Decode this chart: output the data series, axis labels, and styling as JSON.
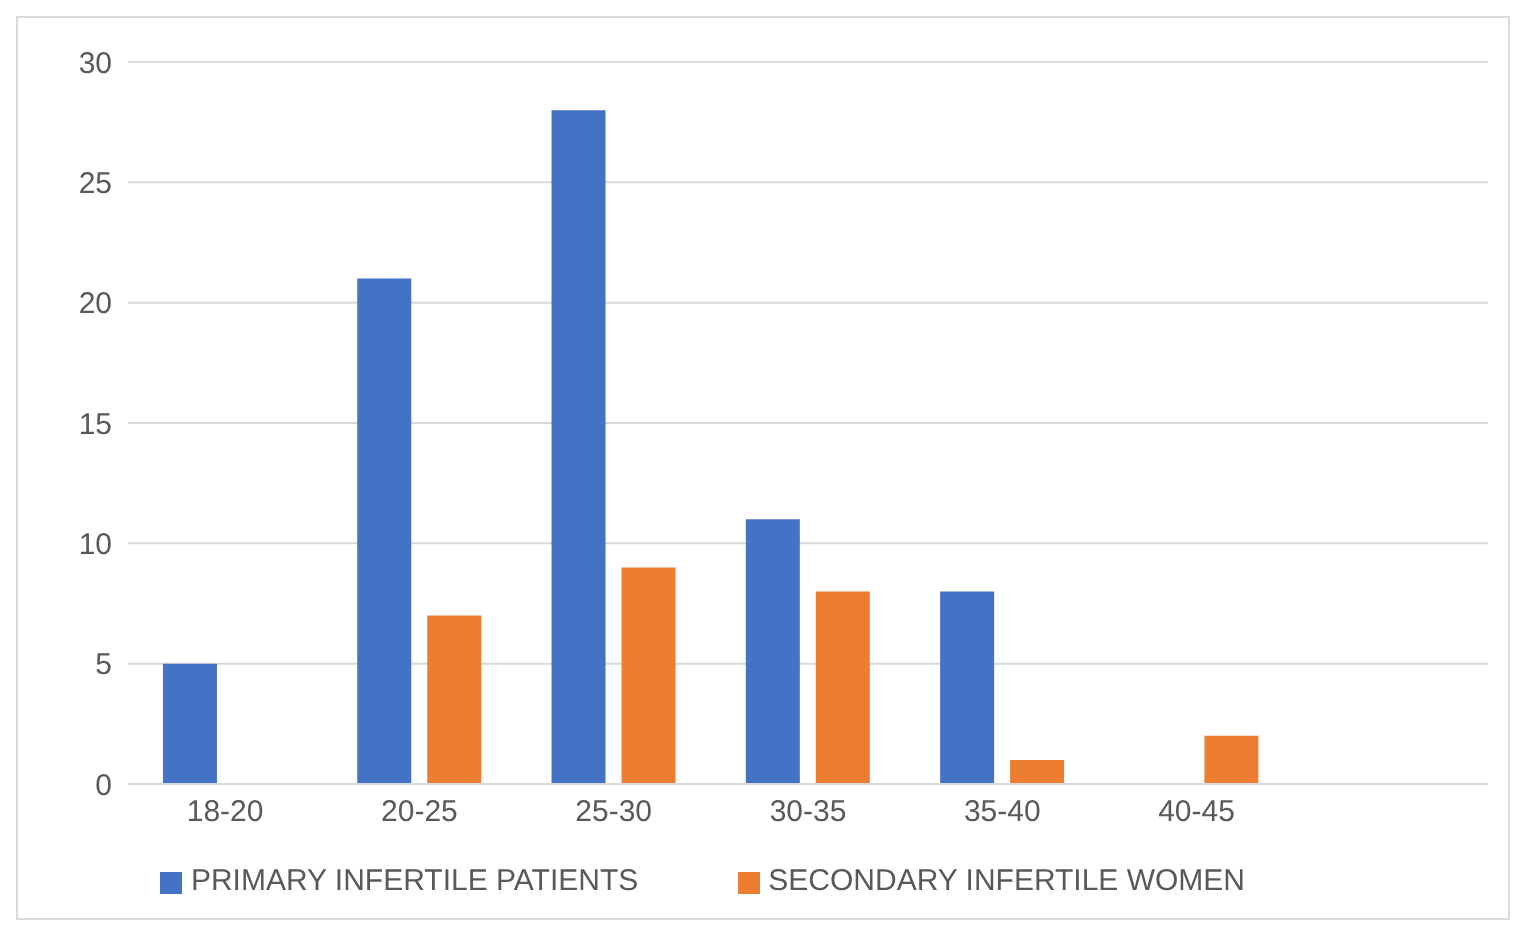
{
  "chart_data": {
    "type": "bar",
    "categories": [
      "18-20",
      "20-25",
      "25-30",
      "30-35",
      "35-40",
      "40-45",
      null
    ],
    "series": [
      {
        "name": "PRIMARY INFERTILE PATIENTS",
        "color": "#4472c4",
        "values": [
          5,
          21,
          28,
          11,
          8,
          0,
          null
        ]
      },
      {
        "name": "SECONDARY INFERTILE WOMEN",
        "color": "#ed7d31",
        "values": [
          0,
          7,
          9,
          8,
          1,
          2,
          null
        ]
      }
    ],
    "ylim": [
      0,
      30
    ],
    "yticks": [
      0,
      5,
      10,
      15,
      20,
      25,
      30
    ],
    "grid": "y",
    "legend": "bottom"
  }
}
